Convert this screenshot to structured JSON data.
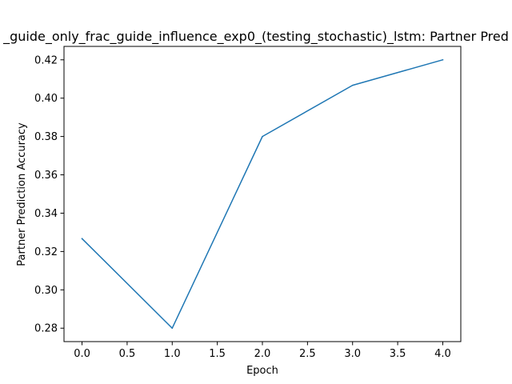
{
  "chart_data": {
    "type": "line",
    "title": "_guide_only_frac_guide_influence_exp0_(testing_stochastic)_lstm: Partner Pred",
    "xlabel": "Epoch",
    "ylabel": "Partner Prediction Accuracy",
    "x": [
      0,
      1,
      2,
      3,
      4
    ],
    "series": [
      {
        "values": [
          0.3267,
          0.28,
          0.38,
          0.4067,
          0.42
        ],
        "color": "#1f77b4"
      }
    ],
    "xlim": [
      -0.2,
      4.2
    ],
    "ylim": [
      0.273,
      0.427
    ],
    "xticks": [
      0,
      0.5,
      1,
      1.5,
      2,
      2.5,
      3,
      3.5,
      4
    ],
    "xtick_labels": [
      "0.0",
      "0.5",
      "1.0",
      "1.5",
      "2.0",
      "2.5",
      "3.0",
      "3.5",
      "4.0"
    ],
    "yticks": [
      0.28,
      0.3,
      0.32,
      0.34,
      0.36,
      0.38,
      0.4,
      0.42
    ],
    "ytick_labels": [
      "0.28",
      "0.30",
      "0.32",
      "0.34",
      "0.36",
      "0.38",
      "0.40",
      "0.42"
    ],
    "grid": false,
    "legend": false
  }
}
